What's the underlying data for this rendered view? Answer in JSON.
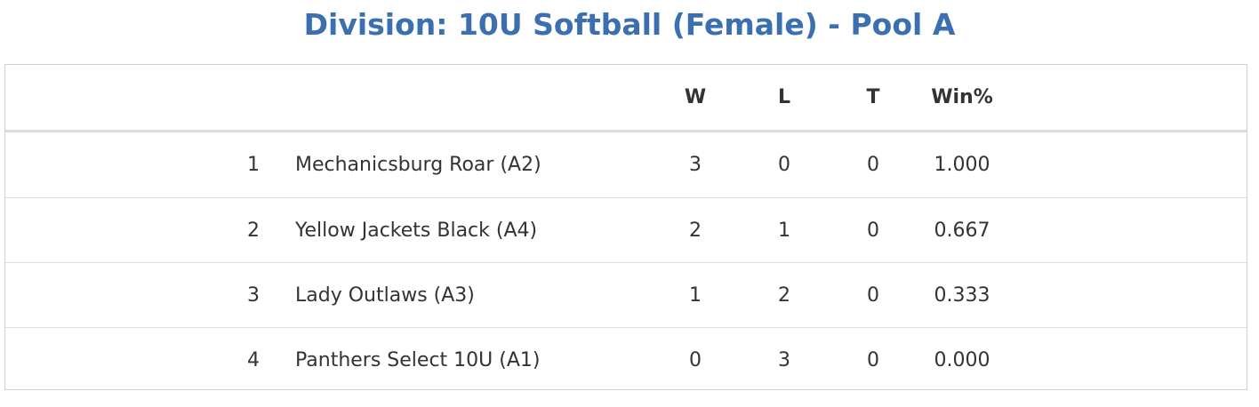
{
  "header": {
    "title": "Division: 10U Softball (Female) - Pool A"
  },
  "table": {
    "columns": [
      "W",
      "L",
      "T",
      "Win%"
    ],
    "rows": [
      [
        "1",
        "Mechanicsburg Roar (A2)",
        "3",
        "0",
        "0",
        "1.000"
      ],
      [
        "2",
        "Yellow Jackets Black (A4)",
        "2",
        "1",
        "0",
        "0.667"
      ],
      [
        "3",
        "Lady Outlaws (A3)",
        "1",
        "2",
        "0",
        "0.333"
      ],
      [
        "4",
        "Panthers Select 10U (A1)",
        "0",
        "3",
        "0",
        "0.000"
      ]
    ]
  }
}
